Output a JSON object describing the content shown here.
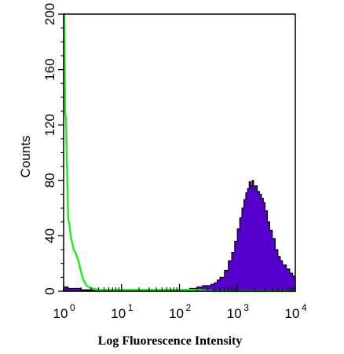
{
  "chart_data": {
    "type": "area",
    "title": "",
    "xlabel": "Log Fluorescence Intensity",
    "ylabel": "Counts",
    "x_scale": "log",
    "xlim": [
      1,
      10000
    ],
    "ylim": [
      0,
      200
    ],
    "grid": false,
    "x_ticks": [
      {
        "base": "10",
        "exp": "0"
      },
      {
        "base": "10",
        "exp": "1"
      },
      {
        "base": "10",
        "exp": "2"
      },
      {
        "base": "10",
        "exp": "3"
      },
      {
        "base": "10",
        "exp": "4"
      }
    ],
    "y_ticks": [
      "0",
      "40",
      "80",
      "120",
      "160",
      "200"
    ],
    "series": [
      {
        "style": "filled",
        "color": "#5500cc",
        "edge_color": "#000000",
        "x": [
          1,
          1.2,
          1.5,
          2,
          3,
          5,
          10,
          20,
          50,
          100,
          150,
          200,
          250,
          300,
          350,
          400,
          450,
          500,
          600,
          700,
          800,
          900,
          1000,
          1100,
          1200,
          1300,
          1400,
          1500,
          1600,
          1700,
          1800,
          1900,
          2000,
          2200,
          2400,
          2600,
          2800,
          3000,
          3300,
          3600,
          4000,
          4500,
          5000,
          5500,
          6000,
          7000,
          8000,
          9000,
          10000
        ],
        "y": [
          3,
          2,
          2,
          1,
          1,
          1,
          1,
          1,
          1,
          1,
          2,
          3,
          4,
          4,
          5,
          6,
          8,
          10,
          15,
          22,
          28,
          36,
          45,
          53,
          60,
          66,
          71,
          74,
          79,
          76,
          80,
          74,
          76,
          72,
          70,
          67,
          64,
          58,
          50,
          44,
          38,
          30,
          25,
          22,
          19,
          16,
          13,
          11,
          10
        ]
      },
      {
        "style": "line",
        "color": "#22ee22",
        "x": [
          1,
          1.03,
          1.06,
          1.1,
          1.15,
          1.2,
          1.25,
          1.3,
          1.35,
          1.4,
          1.5,
          1.6,
          1.7,
          1.8,
          1.9,
          2.0,
          2.2,
          2.5,
          3,
          4,
          6,
          10,
          20,
          50,
          100,
          200,
          400,
          800,
          2000,
          10000
        ],
        "y": [
          200,
          200,
          128,
          125,
          86,
          52,
          49,
          43,
          38,
          35,
          30,
          28,
          25,
          22,
          18,
          14,
          8,
          4,
          2,
          1,
          1,
          1,
          1,
          1,
          1,
          1,
          0,
          0,
          0,
          0
        ]
      }
    ]
  }
}
